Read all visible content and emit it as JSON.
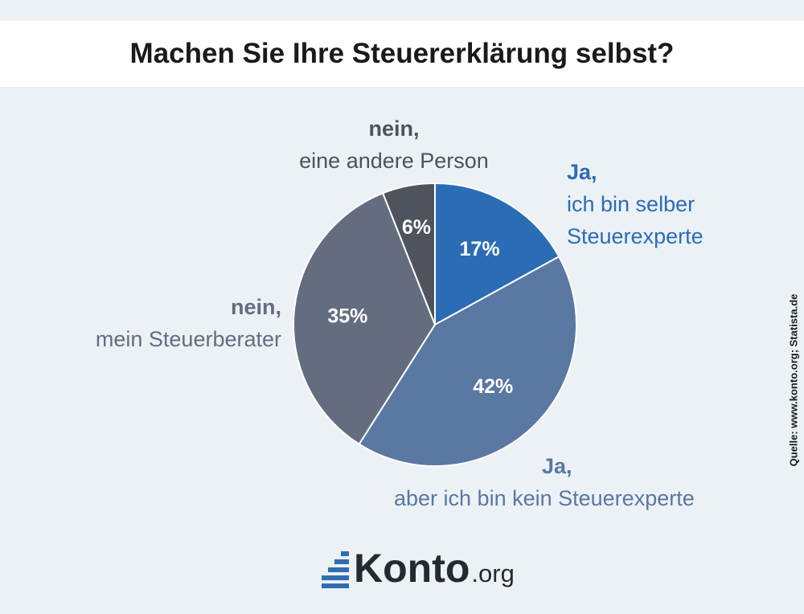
{
  "title": "Machen Sie Ihre Steuererklärung selbst?",
  "source": "Quelle: www.konto.org; Statista.de",
  "logo": {
    "main": "Konto",
    "suffix": ".org"
  },
  "chart_data": {
    "type": "pie",
    "title": "Machen Sie Ihre Steuererklärung selbst?",
    "slices": [
      {
        "label": "Ja, ich bin selber Steuerexperte",
        "label_bold": "Ja,",
        "label_lines": [
          "ich bin selber",
          "Steuerexperte"
        ],
        "value": 17,
        "value_label": "17%",
        "color": "#2a6db5",
        "text_color": "#2a6db5"
      },
      {
        "label": "Ja, aber ich bin kein Steuerexperte",
        "label_bold": "Ja,",
        "label_lines": [
          "aber ich bin kein Steuerexperte"
        ],
        "value": 42,
        "value_label": "42%",
        "color": "#5978a2",
        "text_color": "#5978a2"
      },
      {
        "label": "nein, mein Steuerberater",
        "label_bold": "nein,",
        "label_lines": [
          "mein Steuerberater"
        ],
        "value": 35,
        "value_label": "35%",
        "color": "#646d80",
        "text_color": "#646d80"
      },
      {
        "label": "nein, eine andere Person",
        "label_bold": "nein,",
        "label_lines": [
          "eine andere Person"
        ],
        "value": 6,
        "value_label": "6%",
        "color": "#4e535c",
        "text_color": "#4e535c"
      }
    ]
  }
}
